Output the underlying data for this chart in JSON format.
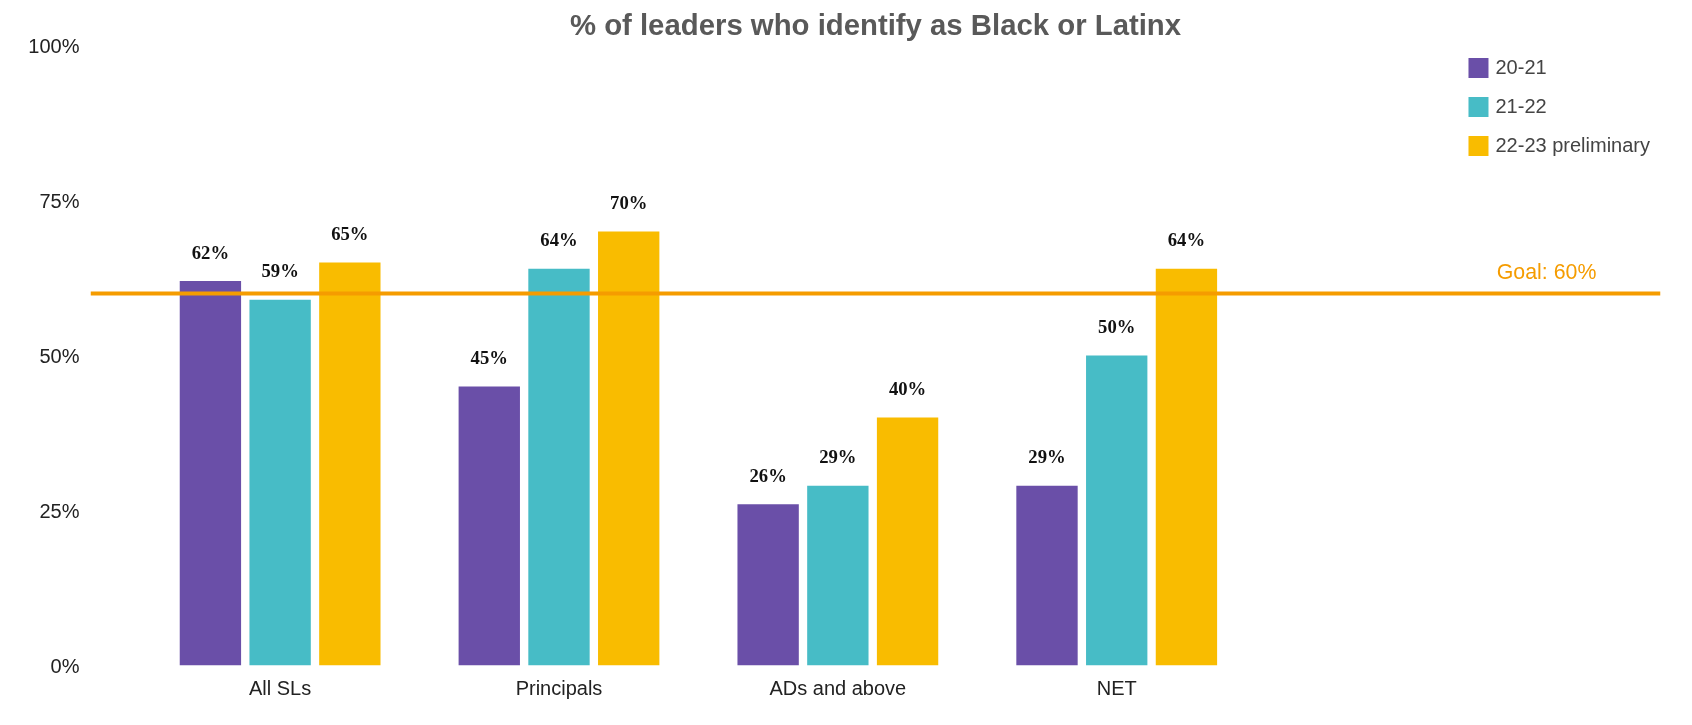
{
  "chart_data": {
    "type": "bar",
    "title": "% of leaders who identify as Black or Latinx",
    "categories": [
      "All SLs",
      "Principals",
      "ADs and above",
      "NET"
    ],
    "series": [
      {
        "name": "20-21",
        "color": "#6a4fa8",
        "values": [
          62,
          45,
          26,
          29
        ],
        "value_labels": [
          "62%",
          "45%",
          "26%",
          "29%"
        ]
      },
      {
        "name": "21-22",
        "color": "#47bcc6",
        "values": [
          59,
          64,
          29,
          50
        ],
        "value_labels": [
          "59%",
          "64%",
          "29%",
          "50%"
        ]
      },
      {
        "name": "22-23 preliminary",
        "color": "#f9bc00",
        "values": [
          65,
          70,
          40,
          64
        ],
        "value_labels": [
          "65%",
          "70%",
          "40%",
          "64%"
        ]
      }
    ],
    "ylim": [
      0,
      100
    ],
    "yticks": [
      {
        "value": 0,
        "label": "0%"
      },
      {
        "value": 25,
        "label": "25%"
      },
      {
        "value": 50,
        "label": "50%"
      },
      {
        "value": 75,
        "label": "75%"
      },
      {
        "value": 100,
        "label": "100%"
      }
    ],
    "ref_lines": [
      {
        "axis": "y",
        "value": 60,
        "label": "Goal: 60%",
        "color": "#f59c00",
        "line_style": "solid"
      }
    ],
    "grid": false,
    "legend": "top right"
  }
}
